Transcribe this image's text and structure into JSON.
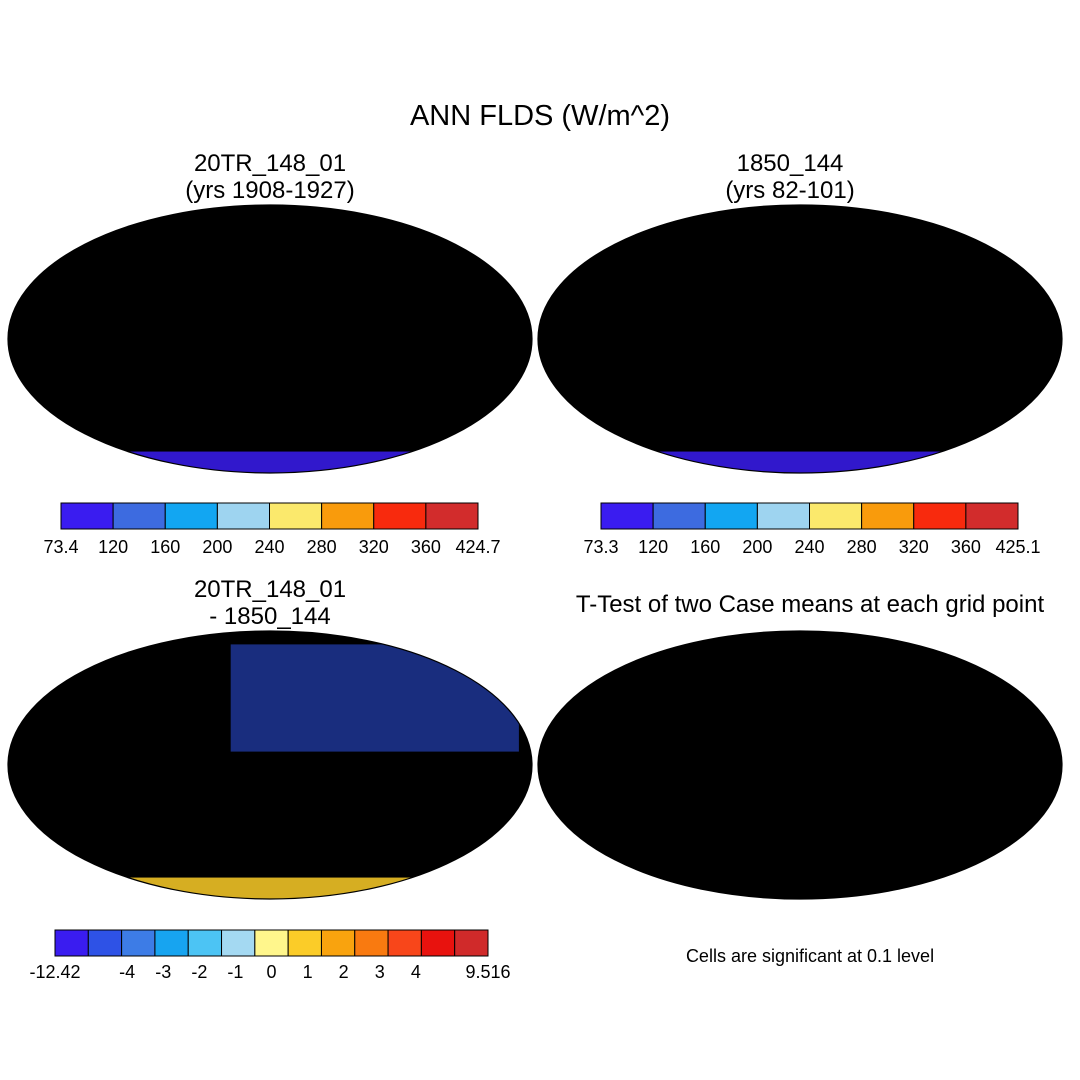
{
  "figure": {
    "title": "ANN FLDS (W/m^2)"
  },
  "panels": [
    {
      "id": "case1",
      "title_line1": "20TR_148_01",
      "title_line2": "(yrs 1908-1927)",
      "colorbar": {
        "colors": [
          "#3a1cf0",
          "#3d6be0",
          "#12a6f2",
          "#9ed4f0",
          "#fbe96c",
          "#f99b0c",
          "#f82a0d",
          "#d22c2c"
        ],
        "labels": [
          "73.4",
          "120",
          "160",
          "200",
          "240",
          "280",
          "320",
          "360",
          "424.7"
        ]
      }
    },
    {
      "id": "case2",
      "title_line1": "1850_144",
      "title_line2": "(yrs 82-101)",
      "colorbar": {
        "colors": [
          "#3a1cf0",
          "#3d6be0",
          "#12a6f2",
          "#9ed4f0",
          "#fbe96c",
          "#f99b0c",
          "#f82a0d",
          "#d22c2c"
        ],
        "labels": [
          "73.3",
          "120",
          "160",
          "200",
          "240",
          "280",
          "320",
          "360",
          "425.1"
        ]
      }
    },
    {
      "id": "diff",
      "title_line1": "20TR_148_01",
      "title_line2": "- 1850_144",
      "colorbar": {
        "colors": [
          "#3a1cf0",
          "#2e52e6",
          "#3d7ce6",
          "#17a4f0",
          "#4cc4f4",
          "#a4d9f2",
          "#fff68c",
          "#fbcc28",
          "#f9a30e",
          "#f97a10",
          "#f8461a",
          "#e8120e",
          "#d02a2a"
        ],
        "labels": [
          "-12.42",
          "",
          "-4",
          "-3",
          "-2",
          "-1",
          "0",
          "1",
          "2",
          "3",
          "4",
          "",
          "9.516"
        ]
      }
    },
    {
      "id": "ttest",
      "title_line1": "T-Test of two Case means at each grid point",
      "note": "Cells are significant at 0.1 level"
    }
  ]
}
